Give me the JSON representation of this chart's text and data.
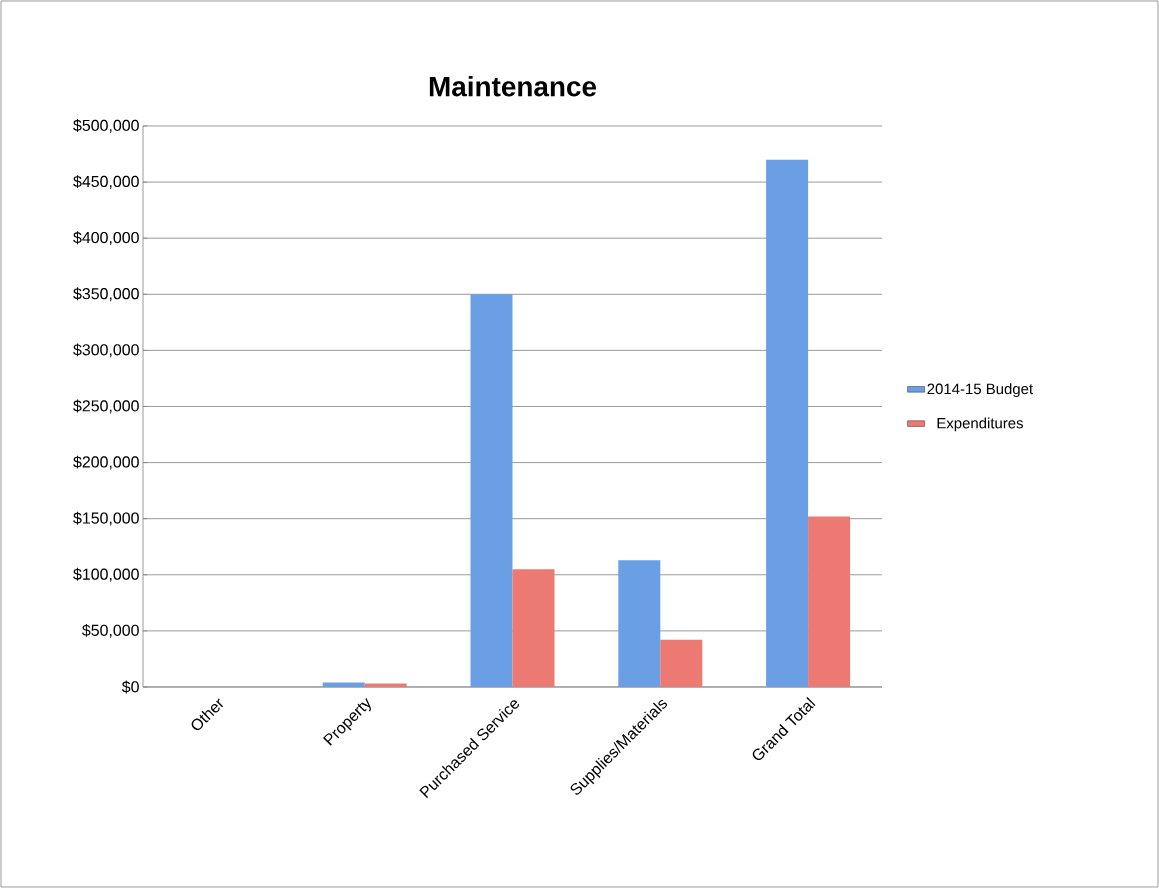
{
  "chart_data": {
    "type": "bar",
    "title": "Maintenance",
    "categories": [
      "Other",
      "Property",
      "Purchased Service",
      "Supplies/Materials",
      "Grand Total"
    ],
    "series": [
      {
        "name": "2014-15 Budget",
        "color": "#6a9fe6",
        "values": [
          0,
          4000,
          350000,
          113000,
          470000
        ]
      },
      {
        "name": "Expenditures",
        "color": "#ec7a72",
        "values": [
          0,
          3000,
          105000,
          42000,
          152000
        ]
      }
    ],
    "ylim": [
      0,
      500000
    ],
    "yticks": [
      {
        "value": 0,
        "label": "$0"
      },
      {
        "value": 50000,
        "label": "$50,000"
      },
      {
        "value": 100000,
        "label": "$100,000"
      },
      {
        "value": 150000,
        "label": "$150,000"
      },
      {
        "value": 200000,
        "label": "$200,000"
      },
      {
        "value": 250000,
        "label": "$250,000"
      },
      {
        "value": 300000,
        "label": "$300,000"
      },
      {
        "value": 350000,
        "label": "$350,000"
      },
      {
        "value": 400000,
        "label": "$400,000"
      },
      {
        "value": 450000,
        "label": "$450,000"
      },
      {
        "value": 500000,
        "label": "$500,000"
      }
    ],
    "grid": "y",
    "legend": "right"
  }
}
